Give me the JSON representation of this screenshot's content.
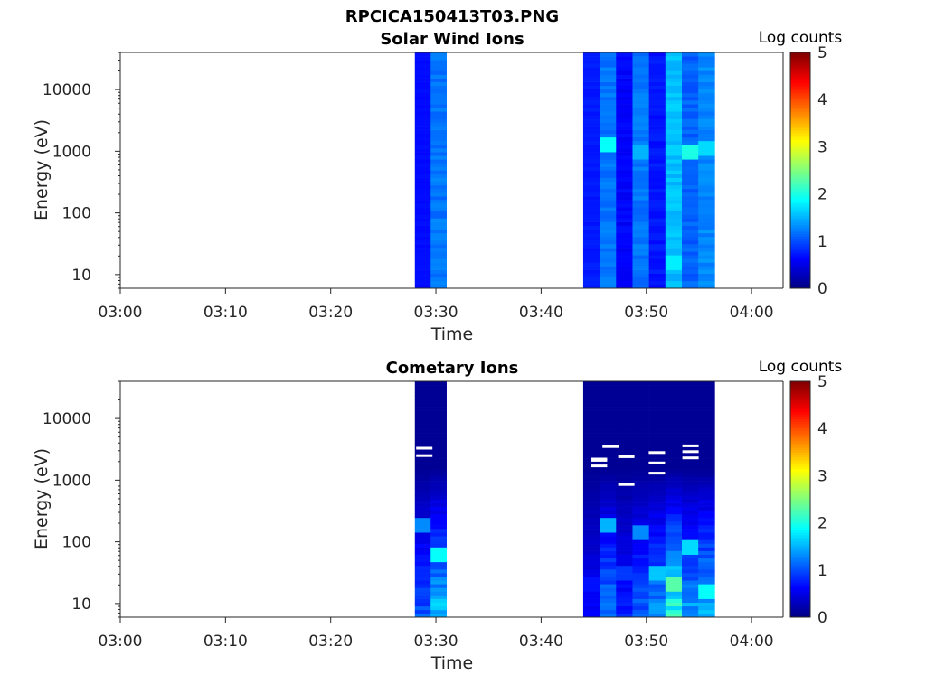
{
  "figure_title": "RPCICA150413T03.PNG",
  "chart_data": [
    {
      "type": "heatmap",
      "title": "Solar Wind Ions",
      "xlabel": "Time",
      "ylabel": "Energy (eV)",
      "x_ticks": [
        "03:00",
        "03:10",
        "03:20",
        "03:30",
        "03:40",
        "03:50",
        "04:00"
      ],
      "x_range_minutes": [
        0,
        63
      ],
      "y_scale": "log",
      "y_ticks": [
        "10",
        "100",
        "1000",
        "10000"
      ],
      "y_range": [
        6,
        40000
      ],
      "colorbar": {
        "label": "Log counts",
        "ticks": [
          "0",
          "1",
          "2",
          "3",
          "4",
          "5"
        ],
        "range": [
          0,
          5
        ],
        "colormap": "jet"
      },
      "data_blocks": [
        {
          "start": "03:28",
          "end": "03:31",
          "columns": [
            {
              "low": 0.6,
              "high": 0.7,
              "peak_energy": null,
              "peak": 0.7
            },
            {
              "low": 0.9,
              "high": 1.3,
              "peak_energy": 20,
              "peak": 1.2
            }
          ]
        },
        {
          "start": "03:44",
          "end": "03:56.5",
          "columns": [
            {
              "low": 0.6,
              "high": 0.8,
              "peak_energy": null,
              "peak": 0.8
            },
            {
              "low": 0.9,
              "high": 1.3,
              "peak_energy": 1200,
              "peak": 1.9
            },
            {
              "low": 0.4,
              "high": 0.7,
              "peak_energy": null,
              "peak": 0.7
            },
            {
              "low": 0.9,
              "high": 1.3,
              "peak_energy": 1000,
              "peak": 1.5
            },
            {
              "low": 0.5,
              "high": 0.8,
              "peak_energy": null,
              "peak": 0.8
            },
            {
              "low": 1.2,
              "high": 1.7,
              "peak_energy": 15,
              "peak": 1.8
            },
            {
              "low": 0.8,
              "high": 1.2,
              "peak_energy": 1000,
              "peak": 2.0
            },
            {
              "low": 1.0,
              "high": 1.4,
              "peak_energy": 1100,
              "peak": 1.7
            }
          ]
        }
      ]
    },
    {
      "type": "heatmap",
      "title": "Cometary Ions",
      "xlabel": "Time",
      "ylabel": "Energy (eV)",
      "x_ticks": [
        "03:00",
        "03:10",
        "03:20",
        "03:30",
        "03:40",
        "03:50",
        "04:00"
      ],
      "x_range_minutes": [
        0,
        63
      ],
      "y_scale": "log",
      "y_ticks": [
        "10",
        "100",
        "1000",
        "10000"
      ],
      "y_range": [
        6,
        40000
      ],
      "colorbar": {
        "label": "Log counts",
        "ticks": [
          "0",
          "1",
          "2",
          "3",
          "4",
          "5"
        ],
        "range": [
          0,
          5
        ],
        "colormap": "jet"
      },
      "data_blocks": [
        {
          "start": "03:28",
          "end": "03:31",
          "columns": [
            {
              "low": 0.1,
              "high": 1.2,
              "peak_energy": 200,
              "peak": 1.3
            },
            {
              "low": 0.1,
              "high": 1.9,
              "peak_energy": 60,
              "peak": 1.9
            }
          ]
        },
        {
          "start": "03:44",
          "end": "03:56.5",
          "columns": [
            {
              "low": 0.1,
              "high": 0.7,
              "peak_energy": 20,
              "peak": 0.7
            },
            {
              "low": 0.1,
              "high": 1.5,
              "peak_energy": 200,
              "peak": 1.5
            },
            {
              "low": 0.1,
              "high": 0.9,
              "peak_energy": 30,
              "peak": 0.9
            },
            {
              "low": 0.1,
              "high": 1.3,
              "peak_energy": 150,
              "peak": 1.3
            },
            {
              "low": 0.1,
              "high": 1.6,
              "peak_energy": 30,
              "peak": 1.6
            },
            {
              "low": 0.1,
              "high": 2.4,
              "peak_energy": 20,
              "peak": 2.3
            },
            {
              "low": 0.1,
              "high": 1.7,
              "peak_energy": 80,
              "peak": 1.7
            },
            {
              "low": 0.1,
              "high": 1.9,
              "peak_energy": 15,
              "peak": 1.9
            }
          ]
        }
      ],
      "no_data_marks": [
        {
          "time": "03:28.9",
          "energy": 3300
        },
        {
          "time": "03:28.9",
          "energy": 2500
        },
        {
          "time": "03:45.5",
          "energy": 2100
        },
        {
          "time": "03:45.5",
          "energy": 1700
        },
        {
          "time": "03:45.5",
          "energy": 2200,
          "note": "low"
        },
        {
          "time": "03:46.6",
          "energy": 3500
        },
        {
          "time": "03:48.1",
          "energy": 2400
        },
        {
          "time": "03:48.1",
          "energy": 850
        },
        {
          "time": "03:51.0",
          "energy": 2800
        },
        {
          "time": "03:51.0",
          "energy": 1900
        },
        {
          "time": "03:51.0",
          "energy": 1300
        },
        {
          "time": "03:54.2",
          "energy": 3600
        },
        {
          "time": "03:54.2",
          "energy": 2900
        },
        {
          "time": "03:54.2",
          "energy": 2300
        }
      ]
    }
  ]
}
